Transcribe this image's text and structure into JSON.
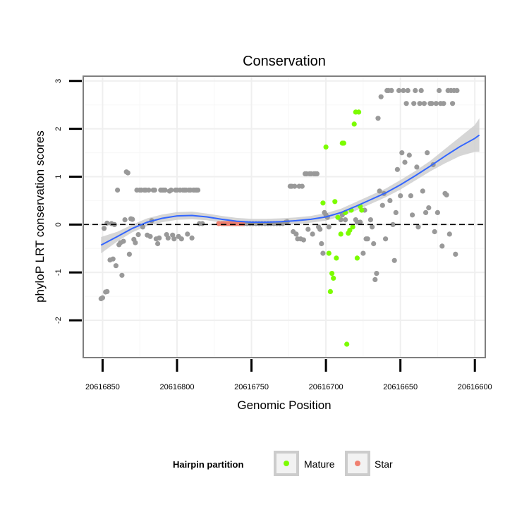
{
  "chart_data": {
    "type": "scatter",
    "title": "Conservation",
    "xlabel": "Genomic Position",
    "ylabel": "phyloP LRT conservation scores",
    "x_reversed": true,
    "xlim": [
      20616863,
      20616593
    ],
    "ylim": [
      -2.78,
      3.1
    ],
    "x_ticks": [
      20616850,
      20616800,
      20616750,
      20616700,
      20616650,
      20616600
    ],
    "x_tick_labels": [
      "20616850",
      "20616800",
      "20616750",
      "20616700",
      "20616650",
      "20616600"
    ],
    "y_ticks": [
      -2,
      -1,
      0,
      1,
      2,
      3
    ],
    "y_tick_labels": [
      "-2",
      "-1",
      "0",
      "1",
      "2",
      "3"
    ],
    "reference_line": {
      "y": 0,
      "style": "dashed"
    },
    "legend": {
      "title": "Hairpin partition",
      "entries": [
        {
          "label": "Mature",
          "color": "#7cfc00"
        },
        {
          "label": "Star",
          "color": "#f08070"
        }
      ],
      "position": "bottom"
    },
    "colors": {
      "other": "#999999",
      "smooth": "#3366ff",
      "band": "#cccccc"
    },
    "series": [
      {
        "name": "Other",
        "color": "#999999",
        "points": [
          [
            20616851,
            -1.55
          ],
          [
            20616850,
            -1.53
          ],
          [
            20616849,
            -0.08
          ],
          [
            20616848,
            -1.41
          ],
          [
            20616847,
            -1.4
          ],
          [
            20616847,
            0.03
          ],
          [
            20616845,
            -0.74
          ],
          [
            20616844,
            0.02
          ],
          [
            20616843,
            -0.72
          ],
          [
            20616842,
            0.0
          ],
          [
            20616841,
            -0.86
          ],
          [
            20616840,
            0.72
          ],
          [
            20616839,
            -0.42
          ],
          [
            20616838,
            -0.38
          ],
          [
            20616837,
            -1.06
          ],
          [
            20616836,
            -0.35
          ],
          [
            20616835,
            0.1
          ],
          [
            20616834,
            1.1
          ],
          [
            20616833,
            1.08
          ],
          [
            20616832,
            -0.62
          ],
          [
            20616831,
            0.12
          ],
          [
            20616830,
            0.11
          ],
          [
            20616829,
            -0.31
          ],
          [
            20616828,
            -0.38
          ],
          [
            20616827,
            0.72
          ],
          [
            20616826,
            -0.21
          ],
          [
            20616825,
            0.72
          ],
          [
            20616824,
            0.72
          ],
          [
            20616823,
            -0.05
          ],
          [
            20616822,
            0.72
          ],
          [
            20616821,
            0.72
          ],
          [
            20616820,
            -0.22
          ],
          [
            20616819,
            0.72
          ],
          [
            20616818,
            -0.25
          ],
          [
            20616817,
            0.08
          ],
          [
            20616816,
            0.72
          ],
          [
            20616815,
            0.72
          ],
          [
            20616814,
            -0.3
          ],
          [
            20616813,
            -0.4
          ],
          [
            20616812,
            -0.28
          ],
          [
            20616811,
            0.72
          ],
          [
            20616810,
            0.72
          ],
          [
            20616809,
            0.72
          ],
          [
            20616808,
            0.72
          ],
          [
            20616807,
            -0.21
          ],
          [
            20616806,
            -0.28
          ],
          [
            20616805,
            0.7
          ],
          [
            20616804,
            0.72
          ],
          [
            20616803,
            -0.22
          ],
          [
            20616802,
            -0.3
          ],
          [
            20616801,
            0.72
          ],
          [
            20616800,
            0.72
          ],
          [
            20616799,
            -0.25
          ],
          [
            20616798,
            0.72
          ],
          [
            20616797,
            -0.3
          ],
          [
            20616796,
            0.72
          ],
          [
            20616795,
            0.72
          ],
          [
            20616794,
            0.72
          ],
          [
            20616793,
            -0.2
          ],
          [
            20616792,
            0.72
          ],
          [
            20616791,
            0.72
          ],
          [
            20616790,
            -0.28
          ],
          [
            20616789,
            0.72
          ],
          [
            20616788,
            0.72
          ],
          [
            20616787,
            0.72
          ],
          [
            20616786,
            0.72
          ],
          [
            20616785,
            0.02
          ],
          [
            20616783,
            0.02
          ],
          [
            20616772,
            0.02
          ],
          [
            20616769,
            0.02
          ],
          [
            20616767,
            0.02
          ],
          [
            20616765,
            0.02
          ],
          [
            20616763,
            0.02
          ],
          [
            20616761,
            0.02
          ],
          [
            20616759,
            0.02
          ],
          [
            20616757,
            0.02
          ],
          [
            20616755,
            0.02
          ],
          [
            20616753,
            0.02
          ],
          [
            20616751,
            0.02
          ],
          [
            20616749,
            0.02
          ],
          [
            20616747,
            0.02
          ],
          [
            20616745,
            0.02
          ],
          [
            20616743,
            0.02
          ],
          [
            20616741,
            0.02
          ],
          [
            20616739,
            0.02
          ],
          [
            20616737,
            0.02
          ],
          [
            20616735,
            0.02
          ],
          [
            20616733,
            0.02
          ],
          [
            20616731,
            0.02
          ],
          [
            20616729,
            0.02
          ],
          [
            20616727,
            0.05
          ],
          [
            20616726,
            0.06
          ],
          [
            20616724,
            0.8
          ],
          [
            20616723,
            0.8
          ],
          [
            20616722,
            -0.15
          ],
          [
            20616721,
            0.8
          ],
          [
            20616720,
            -0.2
          ],
          [
            20616719,
            -0.3
          ],
          [
            20616718,
            0.8
          ],
          [
            20616717,
            -0.3
          ],
          [
            20616716,
            0.8
          ],
          [
            20616715,
            -0.32
          ],
          [
            20616714,
            1.06
          ],
          [
            20616713,
            1.06
          ],
          [
            20616712,
            -0.1
          ],
          [
            20616711,
            1.06
          ],
          [
            20616710,
            1.06
          ],
          [
            20616709,
            -0.2
          ],
          [
            20616708,
            1.06
          ],
          [
            20616707,
            1.06
          ],
          [
            20616706,
            1.06
          ],
          [
            20616705,
            -0.05
          ],
          [
            20616704,
            -0.1
          ],
          [
            20616703,
            -0.4
          ],
          [
            20616702,
            -0.6
          ],
          [
            20616701,
            0.25
          ],
          [
            20616700,
            0.2
          ],
          [
            20616699,
            0.15
          ],
          [
            20616698,
            -0.05
          ],
          [
            20616690,
            0.1
          ],
          [
            20616689,
            0.2
          ],
          [
            20616687,
            0.1
          ],
          [
            20616680,
            0.1
          ],
          [
            20616679,
            0.05
          ],
          [
            20616677,
            0.05
          ],
          [
            20616675,
            -0.6
          ],
          [
            20616674,
            0.3
          ],
          [
            20616673,
            -0.3
          ],
          [
            20616672,
            -0.3
          ],
          [
            20616670,
            0.1
          ],
          [
            20616669,
            -0.05
          ],
          [
            20616668,
            -0.4
          ],
          [
            20616667,
            -1.15
          ],
          [
            20616666,
            -1.02
          ],
          [
            20616665,
            2.22
          ],
          [
            20616664,
            0.7
          ],
          [
            20616663,
            2.67
          ],
          [
            20616662,
            0.4
          ],
          [
            20616661,
            0.65
          ],
          [
            20616660,
            -0.3
          ],
          [
            20616659,
            2.8
          ],
          [
            20616658,
            2.8
          ],
          [
            20616657,
            0.5
          ],
          [
            20616656,
            2.8
          ],
          [
            20616655,
            0.0
          ],
          [
            20616654,
            -0.75
          ],
          [
            20616653,
            0.25
          ],
          [
            20616652,
            1.15
          ],
          [
            20616651,
            2.8
          ],
          [
            20616650,
            0.6
          ],
          [
            20616649,
            1.5
          ],
          [
            20616648,
            2.8
          ],
          [
            20616647,
            1.3
          ],
          [
            20616646,
            2.53
          ],
          [
            20616645,
            2.8
          ],
          [
            20616644,
            1.45
          ],
          [
            20616643,
            0.6
          ],
          [
            20616642,
            0.2
          ],
          [
            20616641,
            2.53
          ],
          [
            20616640,
            2.8
          ],
          [
            20616639,
            1.2
          ],
          [
            20616638,
            -0.05
          ],
          [
            20616637,
            2.53
          ],
          [
            20616636,
            2.8
          ],
          [
            20616635,
            0.7
          ],
          [
            20616634,
            2.53
          ],
          [
            20616633,
            0.25
          ],
          [
            20616632,
            1.5
          ],
          [
            20616631,
            0.35
          ],
          [
            20616630,
            2.53
          ],
          [
            20616629,
            2.53
          ],
          [
            20616628,
            1.25
          ],
          [
            20616627,
            -0.15
          ],
          [
            20616626,
            2.53
          ],
          [
            20616625,
            0.25
          ],
          [
            20616624,
            2.8
          ],
          [
            20616623,
            2.53
          ],
          [
            20616622,
            -0.45
          ],
          [
            20616621,
            2.53
          ],
          [
            20616620,
            0.65
          ],
          [
            20616619,
            0.62
          ],
          [
            20616618,
            2.8
          ],
          [
            20616617,
            -0.2
          ],
          [
            20616616,
            2.8
          ],
          [
            20616615,
            2.53
          ],
          [
            20616614,
            2.8
          ],
          [
            20616613,
            -0.62
          ],
          [
            20616612,
            2.8
          ]
        ]
      },
      {
        "name": "Mature",
        "color": "#7cfc00",
        "points": [
          [
            20616702,
            0.45
          ],
          [
            20616700,
            1.62
          ],
          [
            20616698,
            -0.6
          ],
          [
            20616697,
            -1.4
          ],
          [
            20616696,
            -1.02
          ],
          [
            20616695,
            -1.12
          ],
          [
            20616694,
            0.48
          ],
          [
            20616693,
            -0.7
          ],
          [
            20616692,
            0.15
          ],
          [
            20616690,
            -0.2
          ],
          [
            20616689,
            1.7
          ],
          [
            20616688,
            1.7
          ],
          [
            20616687,
            0.25
          ],
          [
            20616686,
            -2.5
          ],
          [
            20616685,
            -0.18
          ],
          [
            20616684,
            -0.12
          ],
          [
            20616683,
            0.3
          ],
          [
            20616682,
            -0.05
          ],
          [
            20616681,
            2.1
          ],
          [
            20616680,
            2.35
          ],
          [
            20616679,
            -0.7
          ],
          [
            20616678,
            2.35
          ],
          [
            20616677,
            0.38
          ],
          [
            20616676,
            0.3
          ]
        ]
      },
      {
        "name": "Star",
        "color": "#f08070",
        "points": [
          [
            20616772,
            0.02
          ],
          [
            20616770,
            0.02
          ],
          [
            20616768,
            0.02
          ],
          [
            20616766,
            0.02
          ],
          [
            20616764,
            0.02
          ],
          [
            20616762,
            0.02
          ],
          [
            20616760,
            0.02
          ],
          [
            20616758,
            0.02
          ],
          [
            20616756,
            0.02
          ]
        ]
      }
    ],
    "smooth": {
      "x": [
        20616851,
        20616840,
        20616830,
        20616820,
        20616810,
        20616800,
        20616790,
        20616780,
        20616770,
        20616760,
        20616750,
        20616740,
        20616730,
        20616720,
        20616710,
        20616700,
        20616690,
        20616680,
        20616670,
        20616660,
        20616650,
        20616640,
        20616630,
        20616620,
        20616610,
        20616600,
        20616597
      ],
      "y": [
        -0.43,
        -0.25,
        -0.08,
        0.05,
        0.13,
        0.18,
        0.19,
        0.16,
        0.11,
        0.07,
        0.05,
        0.05,
        0.06,
        0.08,
        0.11,
        0.16,
        0.25,
        0.38,
        0.52,
        0.66,
        0.83,
        1.02,
        1.22,
        1.43,
        1.63,
        1.8,
        1.87
      ],
      "se": [
        0.17,
        0.1,
        0.08,
        0.08,
        0.08,
        0.08,
        0.08,
        0.07,
        0.07,
        0.07,
        0.07,
        0.07,
        0.07,
        0.07,
        0.07,
        0.08,
        0.08,
        0.09,
        0.09,
        0.09,
        0.1,
        0.1,
        0.11,
        0.15,
        0.2,
        0.28,
        0.35
      ]
    }
  }
}
